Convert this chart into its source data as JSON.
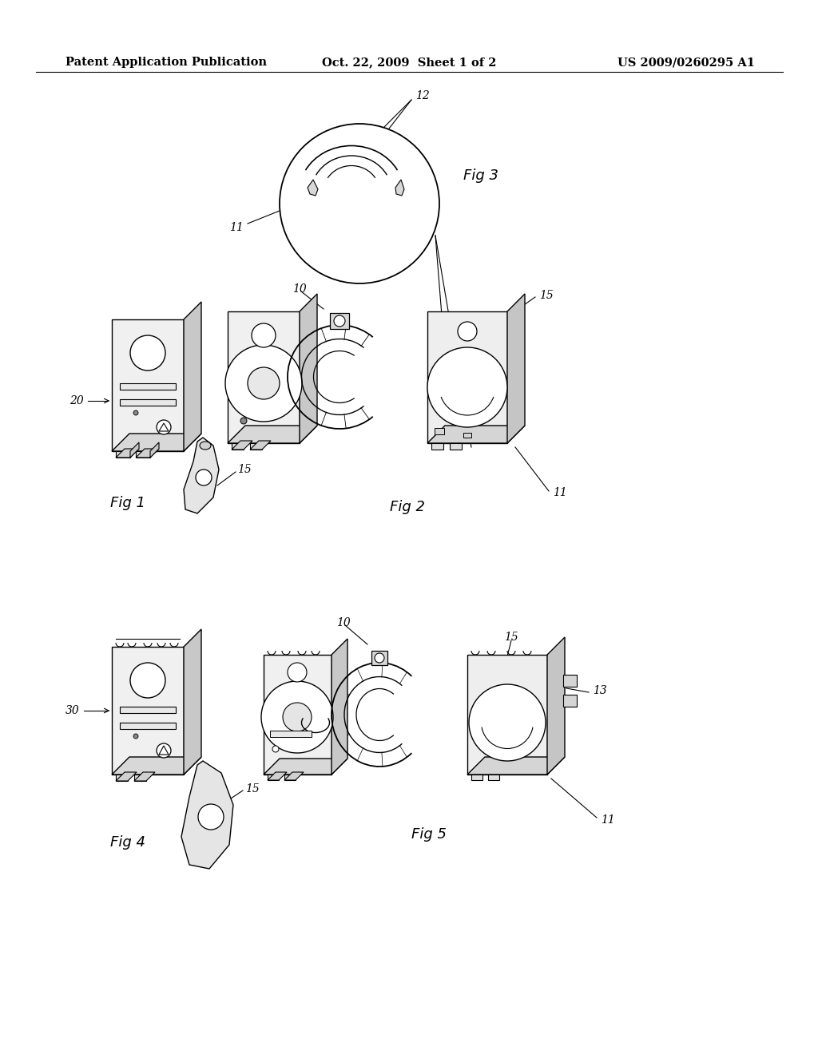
{
  "background_color": "#ffffff",
  "header_left": "Patent Application Publication",
  "header_center": "Oct. 22, 2009  Sheet 1 of 2",
  "header_right": "US 2009/0260295 A1",
  "header_fontsize": 10.5,
  "fig_width": 10.24,
  "fig_height": 13.2,
  "fig_dpi": 100,
  "page_bg": "#f8f8f6"
}
